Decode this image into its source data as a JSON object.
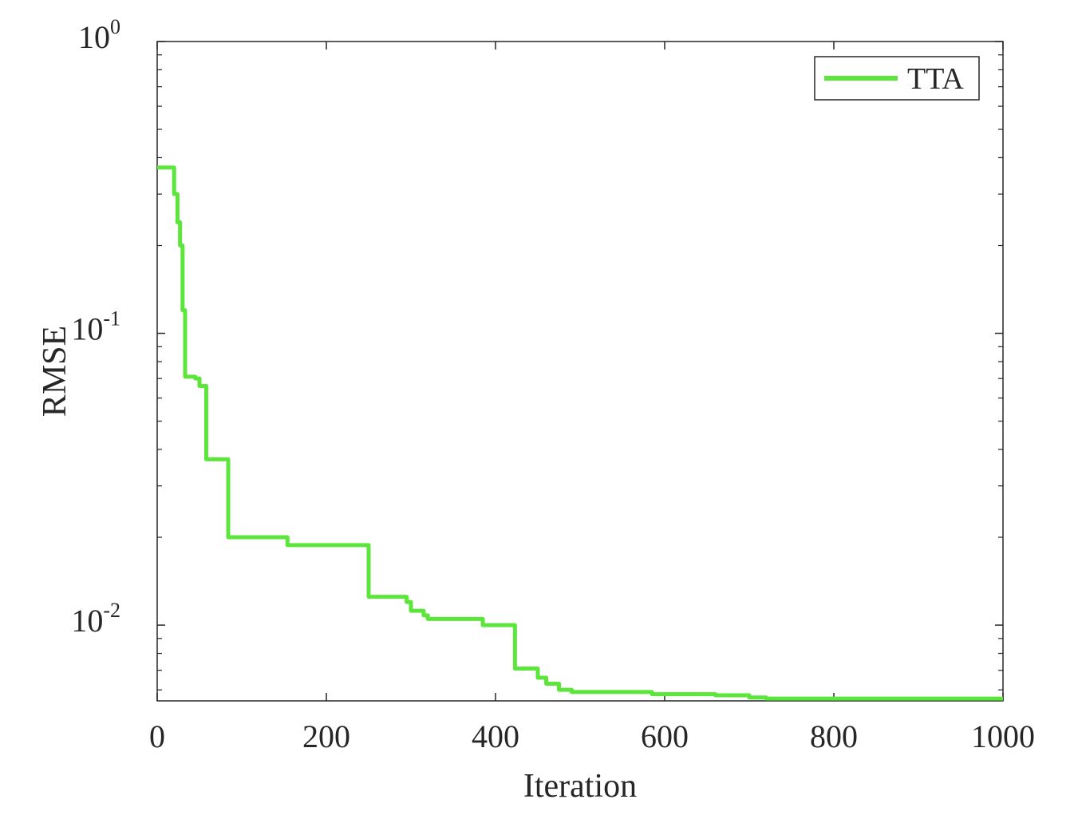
{
  "chart_data": {
    "type": "line",
    "title": "",
    "xlabel": "Iteration",
    "ylabel": "RMSE",
    "xlim": [
      0,
      1000
    ],
    "ylim": [
      0.0055,
      1
    ],
    "yscale": "log",
    "x_ticks": [
      0,
      200,
      400,
      600,
      800,
      1000
    ],
    "x_tick_labels": [
      "0",
      "200",
      "400",
      "600",
      "800",
      "1000"
    ],
    "y_ticks": [
      {
        "value": 1,
        "base": "10",
        "exp": "0"
      },
      {
        "value": 0.1,
        "base": "10",
        "exp": "-1"
      },
      {
        "value": 0.01,
        "base": "10",
        "exp": "-2"
      }
    ],
    "grid": false,
    "legend_position": "top-right",
    "series": [
      {
        "name": "TTA",
        "color": "#5ce63c",
        "step": true,
        "points": [
          [
            0,
            0.37
          ],
          [
            16,
            0.37
          ],
          [
            20,
            0.3
          ],
          [
            24,
            0.24
          ],
          [
            27,
            0.2
          ],
          [
            30,
            0.12
          ],
          [
            33,
            0.071
          ],
          [
            45,
            0.07
          ],
          [
            50,
            0.066
          ],
          [
            55,
            0.066
          ],
          [
            58,
            0.037
          ],
          [
            80,
            0.037
          ],
          [
            84,
            0.02
          ],
          [
            150,
            0.02
          ],
          [
            154,
            0.0188
          ],
          [
            245,
            0.0188
          ],
          [
            250,
            0.0125
          ],
          [
            290,
            0.0125
          ],
          [
            295,
            0.012
          ],
          [
            300,
            0.0112
          ],
          [
            315,
            0.0108
          ],
          [
            320,
            0.0105
          ],
          [
            380,
            0.0105
          ],
          [
            385,
            0.01
          ],
          [
            420,
            0.01
          ],
          [
            423,
            0.0071
          ],
          [
            445,
            0.0071
          ],
          [
            450,
            0.0066
          ],
          [
            460,
            0.0063
          ],
          [
            475,
            0.006
          ],
          [
            490,
            0.0059
          ],
          [
            580,
            0.0059
          ],
          [
            585,
            0.0058
          ],
          [
            650,
            0.0058
          ],
          [
            660,
            0.00575
          ],
          [
            700,
            0.00565
          ],
          [
            720,
            0.0056
          ],
          [
            1000,
            0.0056
          ]
        ]
      }
    ]
  }
}
